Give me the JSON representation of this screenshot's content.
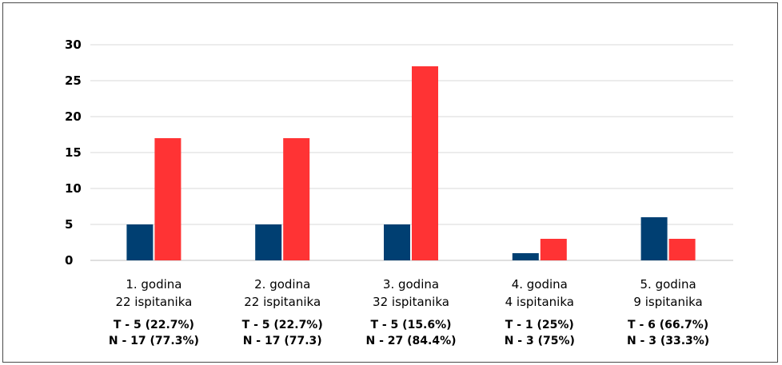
{
  "chart_data": {
    "type": "bar",
    "title": "",
    "xlabel": "",
    "ylabel": "",
    "ylim": [
      0,
      30
    ],
    "yticks": [
      0,
      5,
      10,
      15,
      20,
      25,
      30
    ],
    "grid": true,
    "legend": "none",
    "categories": [
      {
        "line1": "1.  godina",
        "line2": "22 ispitanika",
        "stat_t": "T - 5 (22.7%)",
        "stat_n": "N - 17 (77.3%)"
      },
      {
        "line1": "2. godina",
        "line2": "22 ispitanika",
        "stat_t": "T - 5 (22.7%)",
        "stat_n": "N - 17 (77.3)"
      },
      {
        "line1": "3. godina",
        "line2": "32 ispitanika",
        "stat_t": "T - 5 (15.6%)",
        "stat_n": "N - 27 (84.4%)"
      },
      {
        "line1": "4. godina",
        "line2": "4 ispitanika",
        "stat_t": "T - 1 (25%)",
        "stat_n": "N - 3 (75%)"
      },
      {
        "line1": "5. godina",
        "line2": "9 ispitanika",
        "stat_t": "T - 6 (66.7%)",
        "stat_n": "N - 3 (33.3%)"
      }
    ],
    "series": [
      {
        "values": [
          5,
          5,
          5,
          1,
          6
        ],
        "color": "#003f72"
      },
      {
        "values": [
          17,
          17,
          27,
          3,
          3
        ],
        "color": "#ff3334"
      }
    ]
  },
  "colors": {
    "grid": "#d9d9d9",
    "axis": "#bfbfbf"
  }
}
